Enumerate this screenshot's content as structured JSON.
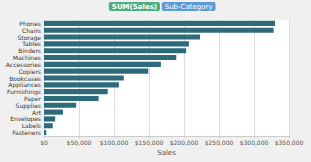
{
  "chart_data": {
    "type": "bar",
    "orientation": "horizontal",
    "title": "SUM(Sales)",
    "subtitle": "Sub-Category",
    "categories": [
      "Phones",
      "Chairs",
      "Storage",
      "Tables",
      "Binders",
      "Machines",
      "Accessories",
      "Copiers",
      "Bookcases",
      "Appliances",
      "Furnishings",
      "Paper",
      "Supplies",
      "Art",
      "Envelopes",
      "Labels",
      "Fasteners"
    ],
    "values": [
      330000,
      328000,
      223000,
      207000,
      203000,
      189000,
      167000,
      149000,
      114000,
      107000,
      91000,
      78000,
      46000,
      27000,
      16000,
      12500,
      3200
    ],
    "color": "#2d6b7a",
    "xlabel": "Sales",
    "xlim": [
      0,
      350000
    ],
    "xticks": [
      {
        "value": 0,
        "label": "$0"
      },
      {
        "value": 50000,
        "label": "$50,000"
      },
      {
        "value": 100000,
        "label": "$100,000"
      },
      {
        "value": 150000,
        "label": "$150,000"
      },
      {
        "value": 200000,
        "label": "$200,000"
      },
      {
        "value": 250000,
        "label": "$250,000"
      },
      {
        "value": 300000,
        "label": "$300,000"
      },
      {
        "value": 350000,
        "label": "$350,000"
      }
    ],
    "grid": true
  }
}
